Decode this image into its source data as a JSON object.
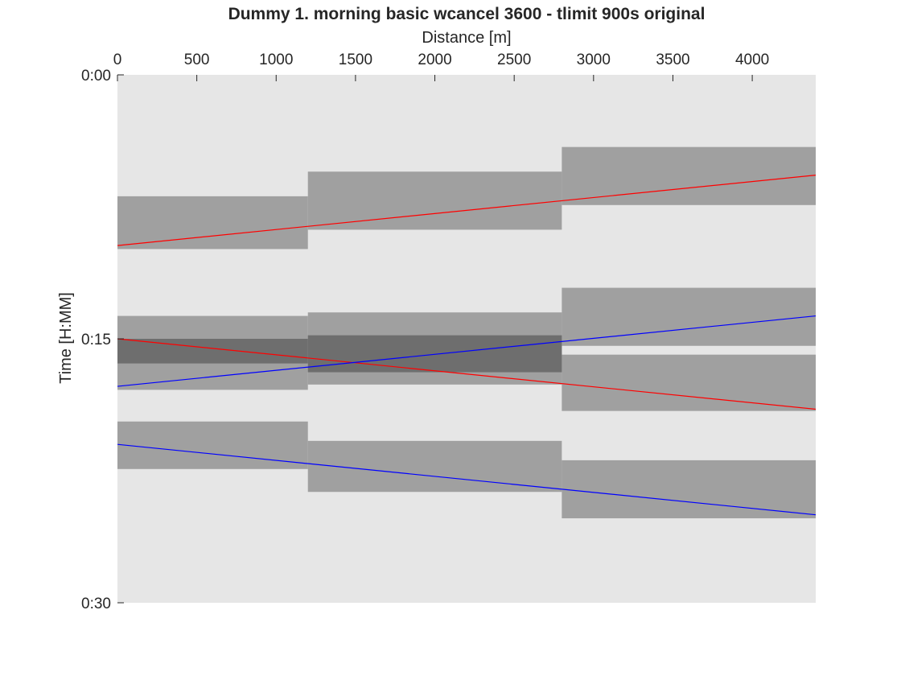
{
  "chart_data": {
    "type": "line",
    "title": "Dummy 1. morning basic wcancel 3600 - tlimit 900s original",
    "xlabel": "Distance [m]",
    "ylabel": "Time [H:MM]",
    "x_axis_location": "top",
    "y_axis_direction": "reversed",
    "xlim": [
      0,
      4400
    ],
    "ylim": [
      0,
      30
    ],
    "x_ticks": [
      0,
      500,
      1000,
      1500,
      2000,
      2500,
      3000,
      3500,
      4000
    ],
    "x_tick_labels": [
      "0",
      "500",
      "1000",
      "1500",
      "2000",
      "2500",
      "3000",
      "3500",
      "4000"
    ],
    "y_ticks": [
      0,
      15,
      30
    ],
    "y_tick_labels": [
      "0:00",
      "0:15",
      "0:30"
    ],
    "grid": false,
    "legend": "none",
    "colors": {
      "background": "#e6e6e6",
      "block": "#a0a0a0",
      "overlap": "#6e6e6e",
      "red": "#ff0000",
      "blue": "#0000ff"
    },
    "blocks": [
      {
        "x": [
          0,
          1200
        ],
        "y": [
          6.9,
          9.9
        ]
      },
      {
        "x": [
          1200,
          2800
        ],
        "y": [
          5.5,
          8.8
        ]
      },
      {
        "x": [
          2800,
          4400
        ],
        "y": [
          4.1,
          7.4
        ]
      },
      {
        "x": [
          0,
          1200
        ],
        "y": [
          13.7,
          17.9
        ]
      },
      {
        "x": [
          1200,
          2800
        ],
        "y": [
          13.5,
          17.6
        ]
      },
      {
        "x": [
          2800,
          4400
        ],
        "y": [
          12.1,
          15.4
        ]
      },
      {
        "x": [
          2800,
          4400
        ],
        "y": [
          15.9,
          19.1
        ]
      },
      {
        "x": [
          0,
          1200
        ],
        "y": [
          19.7,
          22.4
        ]
      },
      {
        "x": [
          1200,
          2800
        ],
        "y": [
          20.8,
          23.7
        ]
      },
      {
        "x": [
          2800,
          4400
        ],
        "y": [
          21.9,
          25.2
        ]
      }
    ],
    "overlaps": [
      {
        "x": [
          0,
          1200
        ],
        "y": [
          15.0,
          16.4
        ]
      },
      {
        "x": [
          1200,
          2800
        ],
        "y": [
          14.8,
          16.9
        ]
      }
    ],
    "series": [
      {
        "color": "#ff0000",
        "x": [
          0,
          4400
        ],
        "y": [
          9.7,
          5.7
        ]
      },
      {
        "color": "#ff0000",
        "x": [
          0,
          4400
        ],
        "y": [
          15.0,
          19.0
        ]
      },
      {
        "color": "#0000ff",
        "x": [
          0,
          4400
        ],
        "y": [
          17.7,
          13.7
        ]
      },
      {
        "color": "#0000ff",
        "x": [
          0,
          4400
        ],
        "y": [
          21.0,
          25.0
        ]
      }
    ]
  }
}
